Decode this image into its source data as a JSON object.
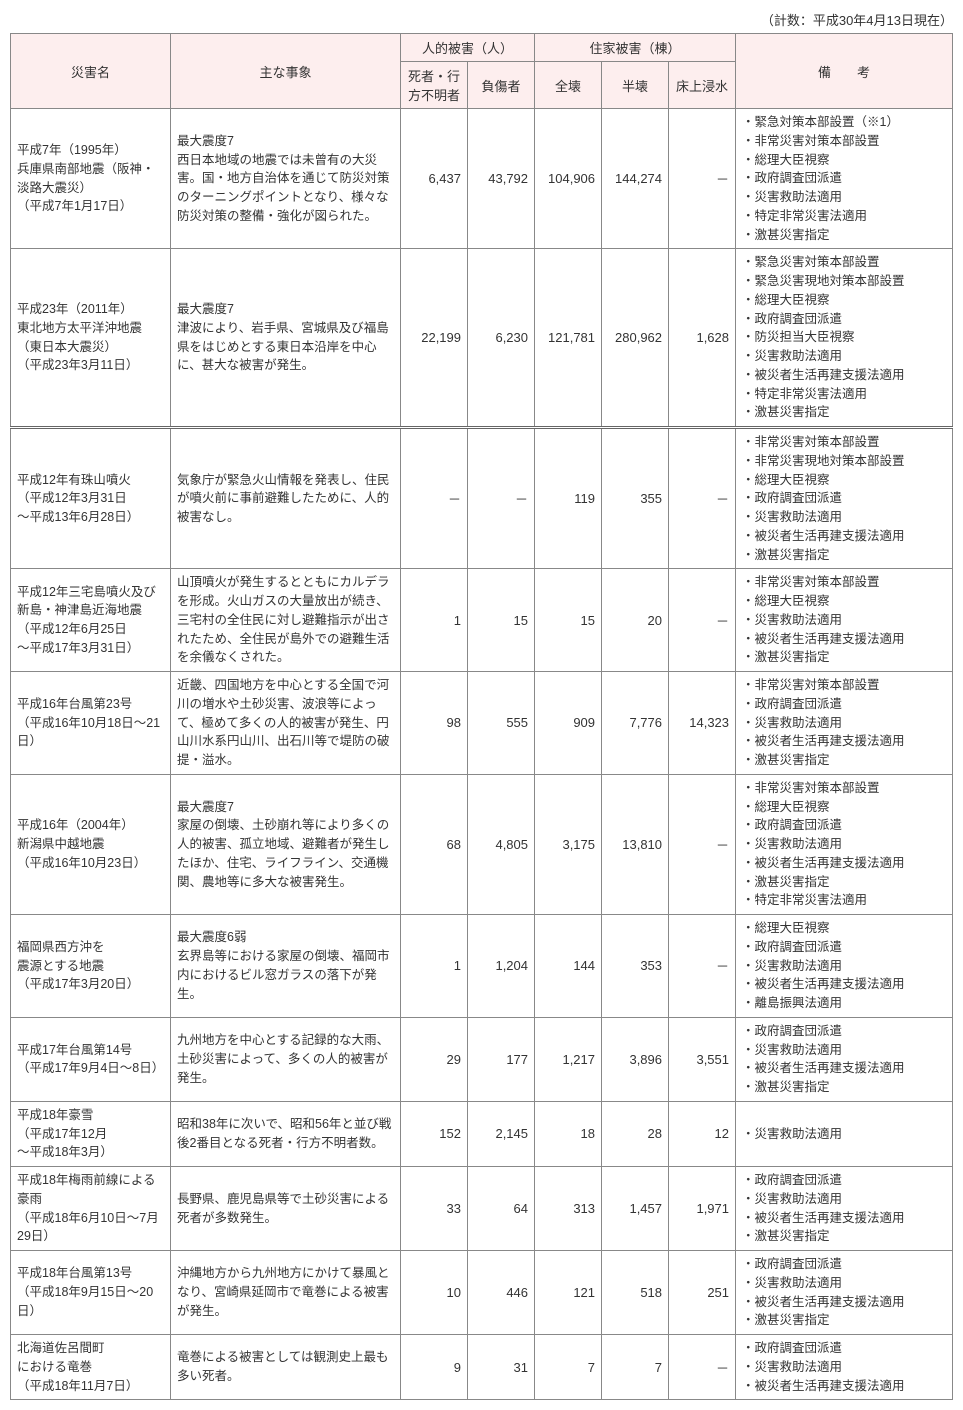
{
  "topNote": "（計数：平成30年4月13日現在）",
  "headers": {
    "name": "災害名",
    "phen": "主な事象",
    "human": "人的被害（人）",
    "house": "住家被害（棟）",
    "remarks": "備　　考",
    "dead": "死者・行方不明者",
    "inj": "負傷者",
    "full": "全壊",
    "half": "半壊",
    "flood": "床上浸水"
  },
  "rows": [
    {
      "name": "平成7年（1995年）\n兵庫県南部地震（阪神・淡路大震災）\n（平成7年1月17日）",
      "phen": "最大震度7\n西日本地域の地震では未曾有の大災害。国・地方自治体を通じて防災対策のターニングポイントとなり、様々な防災対策の整備・強化が図られた。",
      "dead": "6,437",
      "inj": "43,792",
      "full": "104,906",
      "half": "144,274",
      "flood": "－",
      "rem": "・緊急対策本部設置（※1）\n・非常災害対策本部設置\n・総理大臣視察\n・政府調査団派遣\n・災害救助法適用\n・特定非常災害法適用\n・激甚災害指定"
    },
    {
      "name": "平成23年（2011年）\n東北地方太平洋沖地震（東日本大震災）\n（平成23年3月11日）",
      "phen": "最大震度7\n津波により、岩手県、宮城県及び福島県をはじめとする東日本沿岸を中心に、甚大な被害が発生。",
      "dead": "22,199",
      "inj": "6,230",
      "full": "121,781",
      "half": "280,962",
      "flood": "1,628",
      "rem": "・緊急災害対策本部設置\n・緊急災害現地対策本部設置\n・総理大臣視察\n・政府調査団派遣\n・防災担当大臣視察\n・災害救助法適用\n・被災者生活再建支援法適用\n・特定非常災害法適用\n・激甚災害指定"
    },
    {
      "sep": true,
      "name": "平成12年有珠山噴火\n（平成12年3月31日\n～平成13年6月28日）",
      "phen": "気象庁が緊急火山情報を発表し、住民が噴火前に事前避難したために、人的被害なし。",
      "dead": "－",
      "inj": "－",
      "full": "119",
      "half": "355",
      "flood": "－",
      "rem": "・非常災害対策本部設置\n・非常災害現地対策本部設置\n・総理大臣視察\n・政府調査団派遣\n・災害救助法適用\n・被災者生活再建支援法適用\n・激甚災害指定"
    },
    {
      "name": "平成12年三宅島噴火及び新島・神津島近海地震\n（平成12年6月25日\n～平成17年3月31日）",
      "phen": "山頂噴火が発生するとともにカルデラを形成。火山ガスの大量放出が続き、三宅村の全住民に対し避難指示が出されたため、全住民が島外での避難生活を余儀なくされた。",
      "dead": "1",
      "inj": "15",
      "full": "15",
      "half": "20",
      "flood": "－",
      "rem": "・非常災害対策本部設置\n・総理大臣視察\n・災害救助法適用\n・被災者生活再建支援法適用\n・激甚災害指定"
    },
    {
      "name": "平成16年台風第23号\n（平成16年10月18日～21日）",
      "phen": "近畿、四国地方を中心とする全国で河川の増水や土砂災害、波浪等によって、極めて多くの人的被害が発生、円山川水系円山川、出石川等で堤防の破提・溢水。",
      "dead": "98",
      "inj": "555",
      "full": "909",
      "half": "7,776",
      "flood": "14,323",
      "rem": "・非常災害対策本部設置\n・政府調査団派遣\n・災害救助法適用\n・被災者生活再建支援法適用\n・激甚災害指定"
    },
    {
      "name": "平成16年（2004年）\n新潟県中越地震\n（平成16年10月23日）",
      "phen": "最大震度7\n家屋の倒壊、土砂崩れ等により多くの人的被害、孤立地域、避難者が発生したほか、住宅、ライフライン、交通機関、農地等に多大な被害発生。",
      "dead": "68",
      "inj": "4,805",
      "full": "3,175",
      "half": "13,810",
      "flood": "－",
      "rem": "・非常災害対策本部設置\n・総理大臣視察\n・政府調査団派遣\n・災害救助法適用\n・被災者生活再建支援法適用\n・激甚災害指定\n・特定非常災害法適用"
    },
    {
      "name": "福岡県西方沖を\n震源とする地震\n（平成17年3月20日）",
      "phen": "最大震度6弱\n玄界島等における家屋の倒壊、福岡市内におけるビル窓ガラスの落下が発生。",
      "dead": "1",
      "inj": "1,204",
      "full": "144",
      "half": "353",
      "flood": "－",
      "rem": "・総理大臣視察\n・政府調査団派遣\n・災害救助法適用\n・被災者生活再建支援法適用\n・離島振興法適用"
    },
    {
      "name": "平成17年台風第14号\n（平成17年9月4日～8日）",
      "phen": "九州地方を中心とする記録的な大雨、土砂災害によって、多くの人的被害が発生。",
      "dead": "29",
      "inj": "177",
      "full": "1,217",
      "half": "3,896",
      "flood": "3,551",
      "rem": "・政府調査団派遣\n・災害救助法適用\n・被災者生活再建支援法適用\n・激甚災害指定"
    },
    {
      "name": "平成18年豪雪\n（平成17年12月\n～平成18年3月）",
      "phen": "昭和38年に次いで、昭和56年と並び戦後2番目となる死者・行方不明者数。",
      "dead": "152",
      "inj": "2,145",
      "full": "18",
      "half": "28",
      "flood": "12",
      "rem": "・災害救助法適用"
    },
    {
      "name": "平成18年梅雨前線による豪雨\n（平成18年6月10日～7月29日）",
      "phen": "長野県、鹿児島県等で土砂災害による死者が多数発生。",
      "dead": "33",
      "inj": "64",
      "full": "313",
      "half": "1,457",
      "flood": "1,971",
      "rem": "・政府調査団派遣\n・災害救助法適用\n・被災者生活再建支援法適用\n・激甚災害指定"
    },
    {
      "name": "平成18年台風第13号\n（平成18年9月15日～20日）",
      "phen": "沖縄地方から九州地方にかけて暴風となり、宮崎県延岡市で竜巻による被害が発生。",
      "dead": "10",
      "inj": "446",
      "full": "121",
      "half": "518",
      "flood": "251",
      "rem": "・政府調査団派遣\n・災害救助法適用\n・被災者生活再建支援法適用\n・激甚災害指定"
    },
    {
      "name": "北海道佐呂間町\nにおける竜巻\n（平成18年11月7日）",
      "phen": "竜巻による被害としては観測史上最も多い死者。",
      "dead": "9",
      "inj": "31",
      "full": "7",
      "half": "7",
      "flood": "－",
      "rem": "・政府調査団派遣\n・災害救助法適用\n・被災者生活再建支援法適用"
    }
  ]
}
